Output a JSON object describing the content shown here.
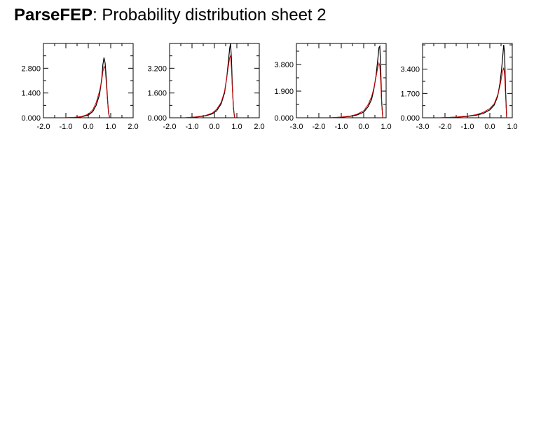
{
  "title": {
    "app": "ParseFEP",
    "rest": ": Probability distribution sheet 2"
  },
  "colors": {
    "series_black": "#000000",
    "series_red": "#cc0000",
    "axis": "#000000"
  },
  "chart_data": [
    {
      "type": "line",
      "xlim": [
        -2.0,
        2.0
      ],
      "ylim": [
        0.0,
        4.2
      ],
      "xticks": [
        "-2.0",
        "-1.0",
        "0.0",
        "1.0",
        "2.0"
      ],
      "xtick_values": [
        -2.0,
        -1.0,
        0.0,
        1.0,
        2.0
      ],
      "yticks": [
        "0.000",
        "1.400",
        "2.800"
      ],
      "ytick_values": [
        0.0,
        1.4,
        2.8
      ],
      "series": [
        {
          "color": "#000000",
          "x": [
            -1.0,
            -0.6,
            -0.3,
            0.0,
            0.2,
            0.35,
            0.5,
            0.6,
            0.65,
            0.7,
            0.75,
            0.8,
            0.85,
            0.9,
            0.95
          ],
          "y": [
            0.0,
            0.02,
            0.05,
            0.15,
            0.35,
            0.7,
            1.3,
            2.2,
            3.0,
            3.4,
            3.1,
            2.3,
            1.2,
            0.3,
            0.0
          ]
        },
        {
          "color": "#cc0000",
          "x": [
            -1.0,
            -0.6,
            -0.3,
            0.0,
            0.2,
            0.35,
            0.5,
            0.6,
            0.65,
            0.7,
            0.75,
            0.8,
            0.85,
            0.9,
            0.95
          ],
          "y": [
            0.0,
            0.03,
            0.07,
            0.2,
            0.45,
            0.85,
            1.5,
            2.1,
            2.6,
            2.9,
            2.8,
            2.0,
            1.1,
            0.35,
            0.0
          ]
        }
      ]
    },
    {
      "type": "line",
      "xlim": [
        -2.0,
        2.0
      ],
      "ylim": [
        0.0,
        4.8
      ],
      "xticks": [
        "-2.0",
        "-1.0",
        "0.0",
        "1.0",
        "2.0"
      ],
      "xtick_values": [
        -2.0,
        -1.0,
        0.0,
        1.0,
        2.0
      ],
      "yticks": [
        "0.000",
        "1.600",
        "3.200"
      ],
      "ytick_values": [
        0.0,
        1.6,
        3.2
      ],
      "series": [
        {
          "color": "#000000",
          "x": [
            -1.3,
            -0.8,
            -0.4,
            -0.1,
            0.1,
            0.3,
            0.45,
            0.55,
            0.62,
            0.68,
            0.72,
            0.76,
            0.8,
            0.85,
            0.9
          ],
          "y": [
            0.0,
            0.05,
            0.12,
            0.25,
            0.45,
            0.9,
            1.6,
            2.6,
            3.6,
            4.5,
            4.8,
            3.8,
            2.0,
            0.6,
            0.0
          ]
        },
        {
          "color": "#cc0000",
          "x": [
            -1.3,
            -0.8,
            -0.4,
            -0.1,
            0.1,
            0.3,
            0.45,
            0.55,
            0.62,
            0.68,
            0.72,
            0.76,
            0.8,
            0.85,
            0.9
          ],
          "y": [
            0.0,
            0.06,
            0.15,
            0.3,
            0.55,
            1.0,
            1.7,
            2.6,
            3.3,
            3.9,
            4.0,
            3.2,
            1.8,
            0.6,
            0.0
          ]
        }
      ]
    },
    {
      "type": "line",
      "xlim": [
        -3.0,
        1.0
      ],
      "ylim": [
        0.0,
        5.3
      ],
      "xticks": [
        "-3.0",
        "-2.0",
        "-1.0",
        "0.0",
        "1.0"
      ],
      "xtick_values": [
        -3.0,
        -2.0,
        -1.0,
        0.0,
        1.0
      ],
      "yticks": [
        "0.000",
        "1.900",
        "3.800"
      ],
      "ytick_values": [
        0.0,
        1.9,
        3.8
      ],
      "series": [
        {
          "color": "#000000",
          "x": [
            -1.5,
            -1.0,
            -0.6,
            -0.3,
            0.0,
            0.2,
            0.35,
            0.45,
            0.55,
            0.62,
            0.68,
            0.72,
            0.76,
            0.8,
            0.85
          ],
          "y": [
            0.0,
            0.04,
            0.1,
            0.2,
            0.4,
            0.8,
            1.3,
            2.0,
            3.0,
            4.0,
            5.0,
            5.1,
            3.5,
            1.2,
            0.0
          ]
        },
        {
          "color": "#cc0000",
          "x": [
            -1.5,
            -1.0,
            -0.6,
            -0.3,
            0.0,
            0.2,
            0.35,
            0.45,
            0.55,
            0.62,
            0.68,
            0.72,
            0.76,
            0.8,
            0.85
          ],
          "y": [
            0.0,
            0.05,
            0.12,
            0.25,
            0.5,
            0.95,
            1.5,
            2.1,
            2.9,
            3.5,
            3.9,
            3.7,
            2.6,
            1.0,
            0.0
          ]
        }
      ]
    },
    {
      "type": "line",
      "xlim": [
        -3.0,
        1.0
      ],
      "ylim": [
        0.0,
        5.2
      ],
      "xticks": [
        "-3.0",
        "-2.0",
        "-1.0",
        "0.0",
        "1.0"
      ],
      "xtick_values": [
        -3.0,
        -2.0,
        -1.0,
        0.0,
        1.0
      ],
      "yticks": [
        "0.000",
        "1.700",
        "3.400"
      ],
      "ytick_values": [
        0.0,
        1.7,
        3.4
      ],
      "series": [
        {
          "color": "#000000",
          "x": [
            -2.2,
            -1.5,
            -1.0,
            -0.6,
            -0.3,
            0.0,
            0.2,
            0.35,
            0.45,
            0.52,
            0.58,
            0.62,
            0.66,
            0.7,
            0.75
          ],
          "y": [
            0.0,
            0.04,
            0.1,
            0.18,
            0.3,
            0.55,
            0.9,
            1.5,
            2.4,
            3.3,
            4.4,
            5.1,
            4.5,
            2.0,
            0.0
          ]
        },
        {
          "color": "#cc0000",
          "x": [
            -2.2,
            -1.5,
            -1.0,
            -0.6,
            -0.3,
            0.0,
            0.2,
            0.35,
            0.45,
            0.52,
            0.58,
            0.62,
            0.66,
            0.7,
            0.75
          ],
          "y": [
            0.0,
            0.05,
            0.12,
            0.22,
            0.38,
            0.65,
            1.0,
            1.6,
            2.2,
            2.8,
            3.3,
            3.5,
            3.0,
            1.6,
            0.0
          ]
        }
      ]
    }
  ]
}
